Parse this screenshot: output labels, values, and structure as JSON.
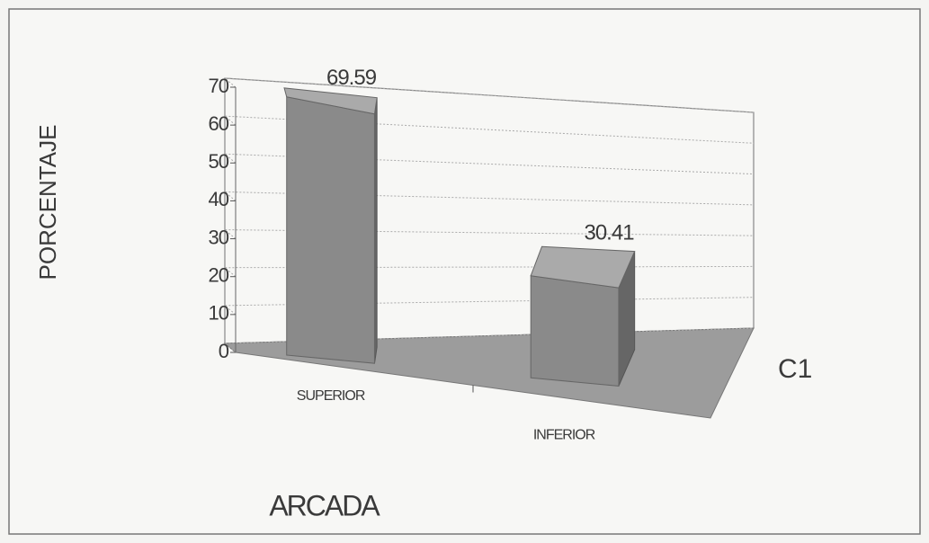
{
  "chart_data": {
    "type": "bar",
    "y_label": "PORCENTAJE",
    "x_label": "ARCADA",
    "categories": [
      "SUPERIOR",
      "INFERIOR"
    ],
    "series": [
      {
        "name": "C1",
        "color": "#8a8a8a",
        "values": [
          69.59,
          30.41
        ]
      }
    ],
    "ylim": [
      0,
      70
    ],
    "yticks": [
      0,
      10,
      20,
      30,
      40,
      50,
      60,
      70
    ],
    "grid": true
  }
}
